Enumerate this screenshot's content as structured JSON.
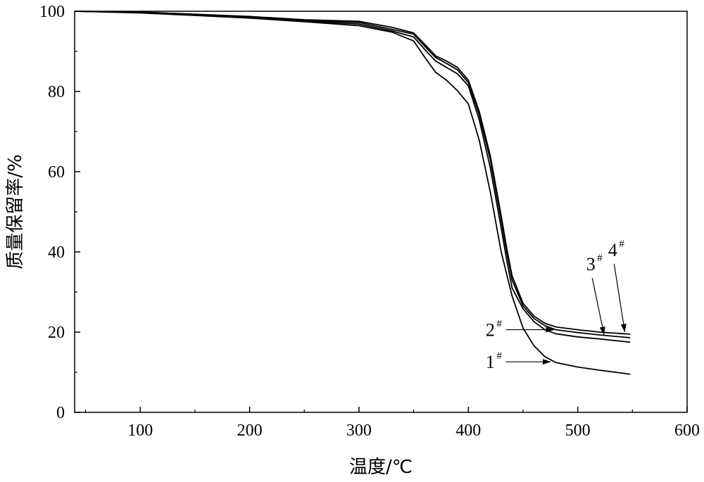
{
  "chart_data": {
    "type": "line",
    "xlabel": "温度/℃",
    "ylabel": "质量保留率/%",
    "xlim": [
      40,
      600
    ],
    "ylim": [
      0,
      100
    ],
    "xticks": [
      100,
      200,
      300,
      400,
      500,
      600
    ],
    "yticks": [
      0,
      20,
      40,
      60,
      80,
      100
    ],
    "grid": false,
    "line_color": "#000000",
    "series": [
      {
        "name": "1",
        "sup": "#",
        "points": [
          [
            40,
            100
          ],
          [
            100,
            99.6
          ],
          [
            200,
            98.3
          ],
          [
            250,
            97.4
          ],
          [
            300,
            96.4
          ],
          [
            330,
            94.8
          ],
          [
            350,
            92.6
          ],
          [
            360,
            88.6
          ],
          [
            370,
            84.8
          ],
          [
            380,
            82.8
          ],
          [
            390,
            80.2
          ],
          [
            400,
            76.9
          ],
          [
            410,
            67.8
          ],
          [
            420,
            55
          ],
          [
            430,
            40
          ],
          [
            440,
            29
          ],
          [
            450,
            21
          ],
          [
            460,
            16.6
          ],
          [
            470,
            13.9
          ],
          [
            480,
            12.4
          ],
          [
            500,
            11.3
          ],
          [
            520,
            10.5
          ],
          [
            540,
            9.8
          ],
          [
            548,
            9.5
          ]
        ],
        "arrow_tip": [
          475,
          12.6
        ],
        "label_at": [
          420,
          12.6
        ]
      },
      {
        "name": "2",
        "sup": "#",
        "points": [
          [
            40,
            100
          ],
          [
            100,
            99.7
          ],
          [
            200,
            98.4
          ],
          [
            250,
            97.6
          ],
          [
            300,
            96.8
          ],
          [
            330,
            95.1
          ],
          [
            350,
            93.6
          ],
          [
            360,
            90.5
          ],
          [
            370,
            87.6
          ],
          [
            380,
            86
          ],
          [
            390,
            84.4
          ],
          [
            400,
            81.4
          ],
          [
            410,
            72.9
          ],
          [
            420,
            61
          ],
          [
            430,
            46
          ],
          [
            435,
            38
          ],
          [
            440,
            31
          ],
          [
            450,
            25.8
          ],
          [
            460,
            22.6
          ],
          [
            470,
            20.6
          ],
          [
            480,
            19.6
          ],
          [
            500,
            18.8
          ],
          [
            520,
            18.3
          ],
          [
            548,
            17.5
          ]
        ],
        "arrow_tip": [
          478,
          20.6
        ],
        "label_at": [
          420,
          20.6
        ]
      },
      {
        "name": "3",
        "sup": "#",
        "points": [
          [
            40,
            100
          ],
          [
            100,
            99.8
          ],
          [
            200,
            98.6
          ],
          [
            250,
            97.8
          ],
          [
            300,
            97.2
          ],
          [
            330,
            95.5
          ],
          [
            350,
            94.3
          ],
          [
            360,
            91.3
          ],
          [
            370,
            88.5
          ],
          [
            380,
            87
          ],
          [
            390,
            85.4
          ],
          [
            400,
            82.2
          ],
          [
            410,
            74.2
          ],
          [
            420,
            63
          ],
          [
            430,
            48
          ],
          [
            435,
            40
          ],
          [
            440,
            33
          ],
          [
            450,
            26.5
          ],
          [
            460,
            23.4
          ],
          [
            470,
            21.6
          ],
          [
            480,
            20.6
          ],
          [
            500,
            19.9
          ],
          [
            520,
            19.3
          ],
          [
            548,
            18.6
          ]
        ],
        "arrow_tip": [
          524,
          19.4
        ],
        "label_at": [
          512,
          37
        ]
      },
      {
        "name": "4",
        "sup": "#",
        "points": [
          [
            40,
            100
          ],
          [
            100,
            99.8
          ],
          [
            200,
            98.7
          ],
          [
            250,
            97.9
          ],
          [
            300,
            97.5
          ],
          [
            330,
            96
          ],
          [
            350,
            94.6
          ],
          [
            360,
            91.8
          ],
          [
            370,
            88.9
          ],
          [
            380,
            87.6
          ],
          [
            390,
            86
          ],
          [
            400,
            82.8
          ],
          [
            410,
            75
          ],
          [
            420,
            64
          ],
          [
            430,
            49
          ],
          [
            435,
            41
          ],
          [
            440,
            34
          ],
          [
            450,
            27.2
          ],
          [
            460,
            24
          ],
          [
            470,
            22.2
          ],
          [
            480,
            21.3
          ],
          [
            500,
            20.6
          ],
          [
            520,
            20
          ],
          [
            548,
            19.5
          ]
        ],
        "arrow_tip": [
          543,
          20.1
        ],
        "label_at": [
          532,
          40.5
        ]
      }
    ]
  }
}
